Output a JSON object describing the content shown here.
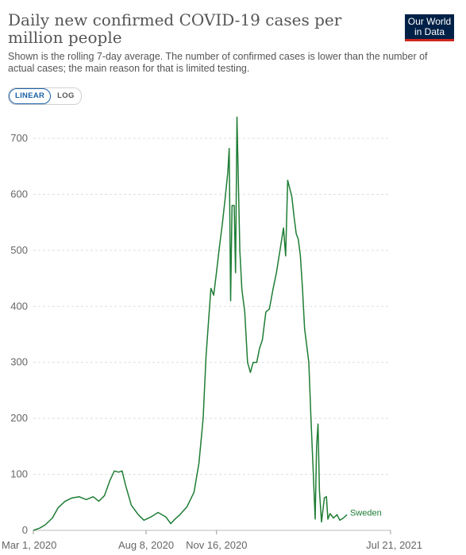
{
  "header": {
    "title": "Daily new confirmed COVID-19 cases per million people",
    "subtitle": "Shown is the rolling 7-day average. The number of confirmed cases is lower than the number of actual cases; the main reason for that is limited testing.",
    "logo_line1": "Our World",
    "logo_line2": "in Data",
    "logo_color": "#002147",
    "logo_accent": "#ce261e"
  },
  "controls": {
    "linear_label": "LINEAR",
    "log_label": "LOG",
    "active": "LINEAR"
  },
  "chart_data": {
    "type": "line",
    "title": "Daily new confirmed COVID-19 cases per million people",
    "subtitle": "Shown is the rolling 7-day average. The number of confirmed cases is lower than the number of actual cases; the main reason for that is limited testing.",
    "xlabel": "",
    "ylabel": "",
    "x_tick_labels": [
      "Mar 1, 2020",
      "Aug 8, 2020",
      "Nov 16, 2020",
      "Jul 21, 2021"
    ],
    "y_ticks": [
      0,
      100,
      200,
      300,
      400,
      500,
      600,
      700
    ],
    "ylim": [
      0,
      740
    ],
    "xlim": [
      "2020-03-01",
      "2021-07-21"
    ],
    "grid": "horizontal dashed",
    "legend": "end-of-line label",
    "series": [
      {
        "name": "Sweden",
        "color": "#1e7d34",
        "points": [
          [
            "2020-03-01",
            0
          ],
          [
            "2020-03-10",
            4
          ],
          [
            "2020-03-18",
            10
          ],
          [
            "2020-03-28",
            22
          ],
          [
            "2020-04-05",
            40
          ],
          [
            "2020-04-15",
            52
          ],
          [
            "2020-04-25",
            58
          ],
          [
            "2020-05-05",
            60
          ],
          [
            "2020-05-15",
            55
          ],
          [
            "2020-05-25",
            60
          ],
          [
            "2020-06-02",
            52
          ],
          [
            "2020-06-10",
            62
          ],
          [
            "2020-06-18",
            90
          ],
          [
            "2020-06-24",
            106
          ],
          [
            "2020-06-30",
            104
          ],
          [
            "2020-07-05",
            106
          ],
          [
            "2020-07-10",
            80
          ],
          [
            "2020-07-18",
            45
          ],
          [
            "2020-07-28",
            28
          ],
          [
            "2020-08-05",
            18
          ],
          [
            "2020-08-15",
            24
          ],
          [
            "2020-08-25",
            32
          ],
          [
            "2020-09-05",
            24
          ],
          [
            "2020-09-12",
            12
          ],
          [
            "2020-09-18",
            20
          ],
          [
            "2020-09-25",
            28
          ],
          [
            "2020-10-05",
            42
          ],
          [
            "2020-10-15",
            68
          ],
          [
            "2020-10-22",
            120
          ],
          [
            "2020-10-28",
            200
          ],
          [
            "2020-11-01",
            310
          ],
          [
            "2020-11-05",
            380
          ],
          [
            "2020-11-08",
            432
          ],
          [
            "2020-11-12",
            420
          ],
          [
            "2020-11-16",
            462
          ],
          [
            "2020-11-20",
            505
          ],
          [
            "2020-11-24",
            545
          ],
          [
            "2020-11-28",
            590
          ],
          [
            "2020-12-02",
            640
          ],
          [
            "2020-12-04",
            682
          ],
          [
            "2020-12-06",
            410
          ],
          [
            "2020-12-08",
            580
          ],
          [
            "2020-12-11",
            580
          ],
          [
            "2020-12-13",
            460
          ],
          [
            "2020-12-15",
            738
          ],
          [
            "2020-12-17",
            620
          ],
          [
            "2020-12-19",
            500
          ],
          [
            "2020-12-22",
            430
          ],
          [
            "2020-12-26",
            390
          ],
          [
            "2020-12-30",
            300
          ],
          [
            "2021-01-03",
            282
          ],
          [
            "2021-01-07",
            300
          ],
          [
            "2021-01-12",
            300
          ],
          [
            "2021-01-16",
            325
          ],
          [
            "2021-01-20",
            340
          ],
          [
            "2021-01-25",
            390
          ],
          [
            "2021-01-30",
            395
          ],
          [
            "2021-02-04",
            430
          ],
          [
            "2021-02-09",
            460
          ],
          [
            "2021-02-14",
            500
          ],
          [
            "2021-02-19",
            540
          ],
          [
            "2021-02-22",
            490
          ],
          [
            "2021-02-25",
            625
          ],
          [
            "2021-02-28",
            610
          ],
          [
            "2021-03-03",
            595
          ],
          [
            "2021-03-06",
            560
          ],
          [
            "2021-03-09",
            530
          ],
          [
            "2021-03-12",
            520
          ],
          [
            "2021-03-15",
            490
          ],
          [
            "2021-03-18",
            430
          ],
          [
            "2021-03-21",
            360
          ],
          [
            "2021-03-24",
            330
          ],
          [
            "2021-03-27",
            300
          ],
          [
            "2021-03-30",
            200
          ],
          [
            "2021-04-02",
            110
          ],
          [
            "2021-04-05",
            20
          ],
          [
            "2021-04-07",
            150
          ],
          [
            "2021-04-09",
            190
          ],
          [
            "2021-04-11",
            70
          ],
          [
            "2021-04-14",
            15
          ],
          [
            "2021-04-18",
            58
          ],
          [
            "2021-04-21",
            60
          ],
          [
            "2021-04-23",
            20
          ],
          [
            "2021-04-26",
            30
          ],
          [
            "2021-05-01",
            22
          ],
          [
            "2021-05-06",
            28
          ],
          [
            "2021-05-10",
            18
          ],
          [
            "2021-05-15",
            22
          ],
          [
            "2021-05-20",
            28
          ]
        ]
      }
    ]
  }
}
